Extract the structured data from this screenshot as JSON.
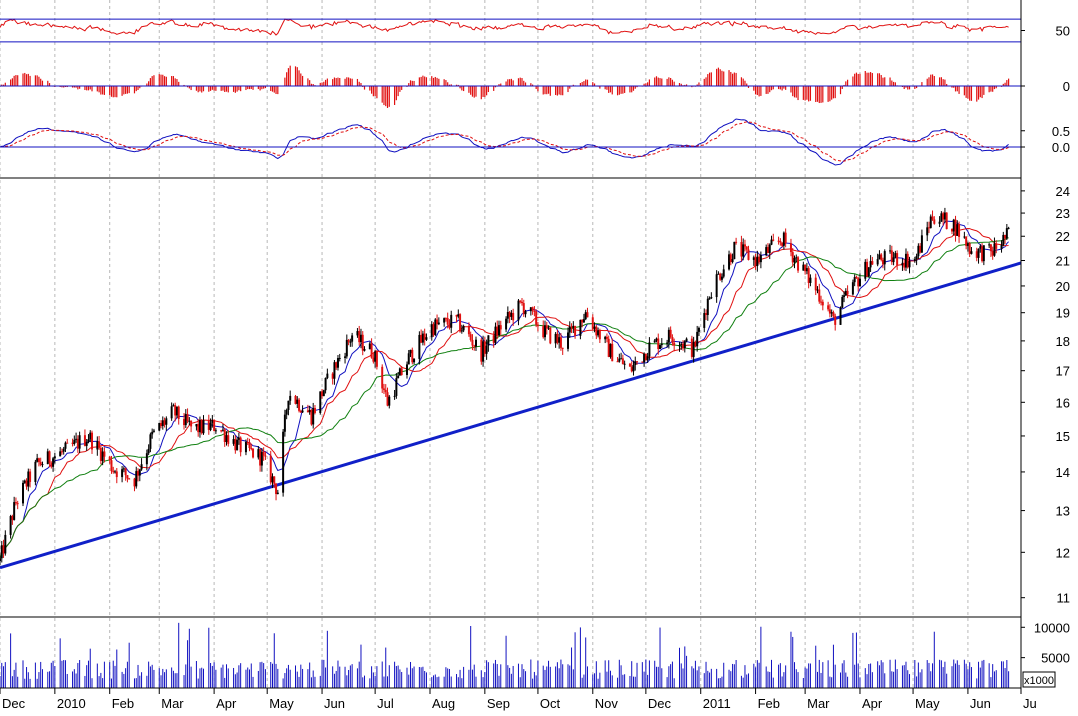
{
  "chart_data": {
    "type": "stock-candlestick-multipanel",
    "title": "",
    "x_axis": {
      "labels": [
        "Dec",
        "2010",
        "Feb",
        "Mar",
        "Apr",
        "May",
        "Jun",
        "Jul",
        "Aug",
        "Sep",
        "Oct",
        "Nov",
        "Dec",
        "2011",
        "Feb",
        "Mar",
        "Apr",
        "May",
        "Jun",
        "Ju"
      ],
      "range": [
        "2009-12-01",
        "2011-07-01"
      ]
    },
    "panels": [
      {
        "name": "rsi",
        "ylim": [
          0,
          100
        ],
        "yticks": [
          "50"
        ],
        "reference_lines": [
          30,
          70
        ],
        "line_color": "#e01010"
      },
      {
        "name": "histogram",
        "yticks": [
          "0"
        ],
        "zero_line": 0,
        "bar_color": "#e01010"
      },
      {
        "name": "oscillator",
        "yticks": [
          "0.5",
          "0.0"
        ],
        "zero_line": 0.0,
        "series_colors": [
          "#1010c0",
          "#e01010"
        ]
      },
      {
        "name": "price",
        "scale": "log",
        "ylim": [
          10.6,
          24.6
        ],
        "yticks": [
          "24",
          "23",
          "22",
          "21",
          "20",
          "19",
          "18",
          "17",
          "16",
          "15",
          "14",
          "13",
          "12",
          "11"
        ],
        "trendline": {
          "from": [
            "2009-12-01",
            11.65
          ],
          "to": [
            "2011-07-01",
            20.9
          ],
          "color": "#1020c8"
        },
        "moving_average_colors": [
          "#1010c0",
          "#e01010",
          "#108010"
        ],
        "candle_up_color": "#000000",
        "candle_down_color": "#e01010",
        "anchors": [
          [
            "2009-12-01",
            11.8
          ],
          [
            "2009-12-10",
            13.2
          ],
          [
            "2009-12-22",
            14.2
          ],
          [
            "2010-01-08",
            14.6
          ],
          [
            "2010-01-20",
            15.0
          ],
          [
            "2010-02-03",
            14.1
          ],
          [
            "2010-02-15",
            13.8
          ],
          [
            "2010-02-25",
            15.0
          ],
          [
            "2010-03-09",
            15.7
          ],
          [
            "2010-03-20",
            15.2
          ],
          [
            "2010-04-02",
            15.3
          ],
          [
            "2010-04-15",
            14.7
          ],
          [
            "2010-04-28",
            14.4
          ],
          [
            "2010-05-07",
            13.5
          ],
          [
            "2010-05-13",
            16.3
          ],
          [
            "2010-05-26",
            15.6
          ],
          [
            "2010-06-07",
            17.0
          ],
          [
            "2010-06-18",
            18.2
          ],
          [
            "2010-06-30",
            17.6
          ],
          [
            "2010-07-08",
            16.0
          ],
          [
            "2010-07-20",
            17.4
          ],
          [
            "2010-08-02",
            18.5
          ],
          [
            "2010-08-16",
            18.7
          ],
          [
            "2010-08-30",
            17.6
          ],
          [
            "2010-09-10",
            18.5
          ],
          [
            "2010-09-22",
            19.3
          ],
          [
            "2010-10-05",
            18.3
          ],
          [
            "2010-10-15",
            17.9
          ],
          [
            "2010-10-28",
            19.0
          ],
          [
            "2010-11-10",
            17.7
          ],
          [
            "2010-11-22",
            17.0
          ],
          [
            "2010-12-03",
            17.8
          ],
          [
            "2010-12-15",
            18.2
          ],
          [
            "2010-12-28",
            17.7
          ],
          [
            "2011-01-07",
            19.9
          ],
          [
            "2011-01-20",
            21.5
          ],
          [
            "2011-02-02",
            21.0
          ],
          [
            "2011-02-16",
            21.9
          ],
          [
            "2011-02-28",
            20.6
          ],
          [
            "2011-03-10",
            19.6
          ],
          [
            "2011-03-17",
            18.7
          ],
          [
            "2011-03-28",
            20.0
          ],
          [
            "2011-04-08",
            21.0
          ],
          [
            "2011-04-20",
            21.1
          ],
          [
            "2011-05-02",
            21.0
          ],
          [
            "2011-05-12",
            22.9
          ],
          [
            "2011-05-24",
            22.5
          ],
          [
            "2011-06-03",
            21.4
          ],
          [
            "2011-06-14",
            21.3
          ],
          [
            "2011-06-24",
            22.1
          ]
        ]
      },
      {
        "name": "volume",
        "unit_label": "x1000",
        "yticks": [
          "10000",
          "5000"
        ],
        "ylim": [
          0,
          11200
        ],
        "bar_color": "#1010c0"
      }
    ]
  }
}
